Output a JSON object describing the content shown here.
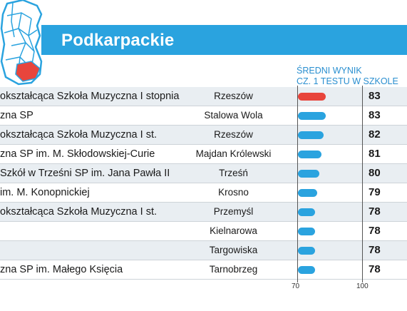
{
  "region_name": "Podkarpackie",
  "column_header": {
    "line1": "ŚREDNI WYNIK",
    "line2": "CZ. 1 TESTU W SZKOLE"
  },
  "colors": {
    "accent": "#2aa3df",
    "bar_default": "#2aa3df",
    "bar_highlight": "#e8453c",
    "map_highlight": "#e8453c",
    "row_shade": "#e9eef2"
  },
  "rows": [
    {
      "name": "okształcąca Szkoła Muzyczna I stopnia",
      "city": "Rzeszów",
      "score": "83"
    },
    {
      "name": "zna SP",
      "city": "Stalowa Wola",
      "score": "83"
    },
    {
      "name": "okształcąca Szkoła Muzyczna I st.",
      "city": "Rzeszów",
      "score": "82"
    },
    {
      "name": "zna SP im. M. Skłodowskiej-Curie",
      "city": "Majdan Królewski",
      "score": "81"
    },
    {
      "name": "Szkół w Trześni SP im. Jana Pawła II",
      "city": "Trześń",
      "score": "80"
    },
    {
      "name": "im. M. Konopnickiej",
      "city": "Krosno",
      "score": "79"
    },
    {
      "name": "okształcąca Szkoła Muzyczna I st.",
      "city": "Przemyśl",
      "score": "78"
    },
    {
      "name": "",
      "city": "Kielnarowa",
      "score": "78"
    },
    {
      "name": "",
      "city": "Targowiska",
      "score": "78"
    },
    {
      "name": "zna SP im. Małego Księcia",
      "city": "Tarnobrzeg",
      "score": "78"
    }
  ],
  "chart_data": {
    "type": "bar",
    "orientation": "horizontal",
    "categories": [
      "Rzeszów",
      "Stalowa Wola",
      "Rzeszów",
      "Majdan Królewski",
      "Trześń",
      "Krosno",
      "Przemyśl",
      "Kielnarowa",
      "Targowiska",
      "Tarnobrzeg"
    ],
    "values": [
      83,
      83,
      82,
      81,
      80,
      79,
      78,
      78,
      78,
      78
    ],
    "highlight_index": 0,
    "xlim": [
      70,
      100
    ],
    "tick_labels": [
      "70",
      "100"
    ]
  }
}
